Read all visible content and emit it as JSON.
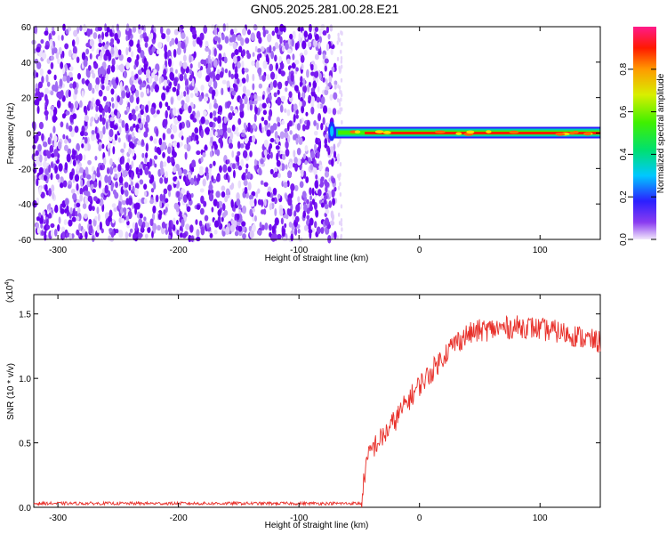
{
  "title": "GN05.2025.281.00.28.E21",
  "chart_data": [
    {
      "type": "heatmap",
      "xlabel": "Height of straight line (km)",
      "ylabel": "Frequency (Hz)",
      "xlim": [
        -320,
        150
      ],
      "ylim": [
        -60,
        60
      ],
      "xticks": [
        -300,
        -200,
        -100,
        0,
        100
      ],
      "yticks": [
        -60,
        -40,
        -20,
        0,
        20,
        40,
        60
      ],
      "colorbar": {
        "label": "Normalized spectral amplitude",
        "range": [
          0.0,
          1.0
        ],
        "ticks": [
          "0.0",
          "0.2",
          "0.4",
          "0.6",
          "0.8"
        ],
        "colormap": "rainbow (purple to red)"
      },
      "noise_region_x": [
        -320,
        -65
      ],
      "signal_band": {
        "x": [
          -75,
          150
        ],
        "frequency_hz": 0,
        "peak_amplitude": 1.0
      }
    },
    {
      "type": "line",
      "xlabel": "Height of straight line (km)",
      "ylabel": "SNR (10 * v/v)",
      "y_multiplier_label": "(x10",
      "y_multiplier_exp": "4",
      "y_multiplier_close": ")",
      "xlim": [
        -320,
        150
      ],
      "ylim": [
        0,
        1.65
      ],
      "xticks": [
        -300,
        -200,
        -100,
        0,
        100
      ],
      "yticks": [
        "0.0",
        "0.5",
        "1.0",
        "1.5"
      ],
      "color": "#e8302a",
      "x": [
        -320,
        -100,
        -48,
        -45,
        -40,
        -30,
        -20,
        -10,
        0,
        10,
        20,
        30,
        40,
        50,
        60,
        70,
        80,
        90,
        100,
        110,
        120,
        130,
        140,
        150
      ],
      "y": [
        0.03,
        0.03,
        0.03,
        0.3,
        0.45,
        0.55,
        0.68,
        0.82,
        0.95,
        1.05,
        1.18,
        1.28,
        1.34,
        1.37,
        1.38,
        1.39,
        1.4,
        1.4,
        1.38,
        1.37,
        1.35,
        1.33,
        1.3,
        1.28
      ]
    }
  ]
}
